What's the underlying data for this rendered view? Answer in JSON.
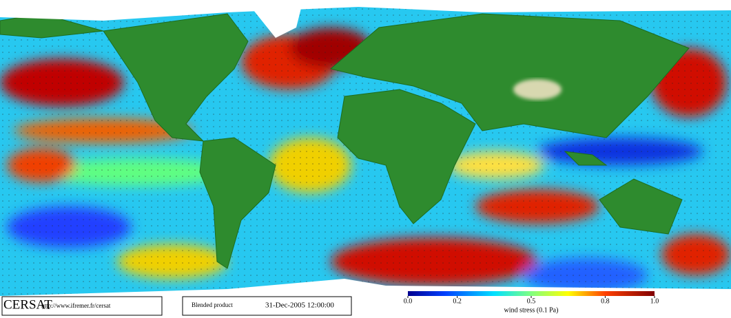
{
  "footer": {
    "logo": "CERSAT",
    "url": "http://www.ifremer.fr/cersat",
    "product": "Blended product",
    "date": "31-Dec-2005 12:00:00"
  },
  "colorbar": {
    "lim": [
      0,
      1
    ],
    "ticks": [
      {
        "value": 0,
        "label": "0.0"
      },
      0.2,
      0.5,
      0.8,
      {
        "value": 1,
        "label": "1.0"
      }
    ],
    "label": "wind stress (0.1 Pa)"
  }
}
